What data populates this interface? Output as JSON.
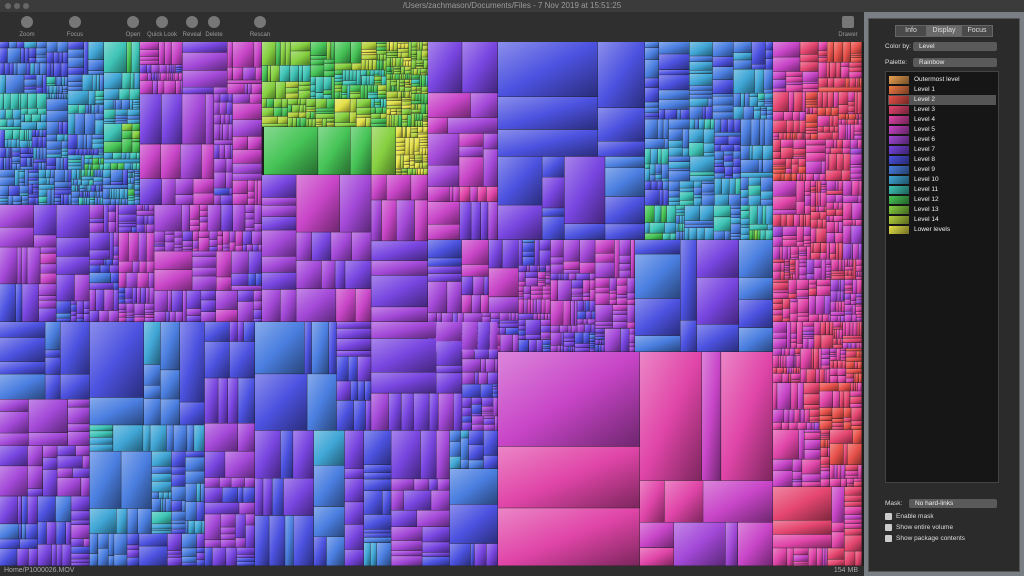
{
  "window": {
    "title": "/Users/zachmason/Documents/Files - 7 Nov 2019 at 15:51:25"
  },
  "toolbar": {
    "buttons": [
      "Zoom",
      "Focus",
      "Open",
      "Quick Look",
      "Reveal",
      "Delete",
      "Rescan"
    ],
    "drawer": "Drawer"
  },
  "panel": {
    "tabs": [
      "Info",
      "Display",
      "Focus"
    ],
    "color_by_label": "Color by:",
    "color_by": "Level",
    "palette_label": "Palette:",
    "palette": "Rainbow",
    "legend": [
      "Outermost level",
      "Level 1",
      "Level 2",
      "Level 3",
      "Level 4",
      "Level 5",
      "Level 6",
      "Level 7",
      "Level 8",
      "Level 9",
      "Level 10",
      "Level 11",
      "Level 12",
      "Level 13",
      "Level 14",
      "Lower levels"
    ],
    "mask_label": "Mask:",
    "mask": "No hard-links",
    "checkboxes": [
      "Enable mask",
      "Show entire volume",
      "Show package contents"
    ]
  },
  "status": {
    "path": "Home/P1000026.MOV",
    "size": "154 MB"
  }
}
